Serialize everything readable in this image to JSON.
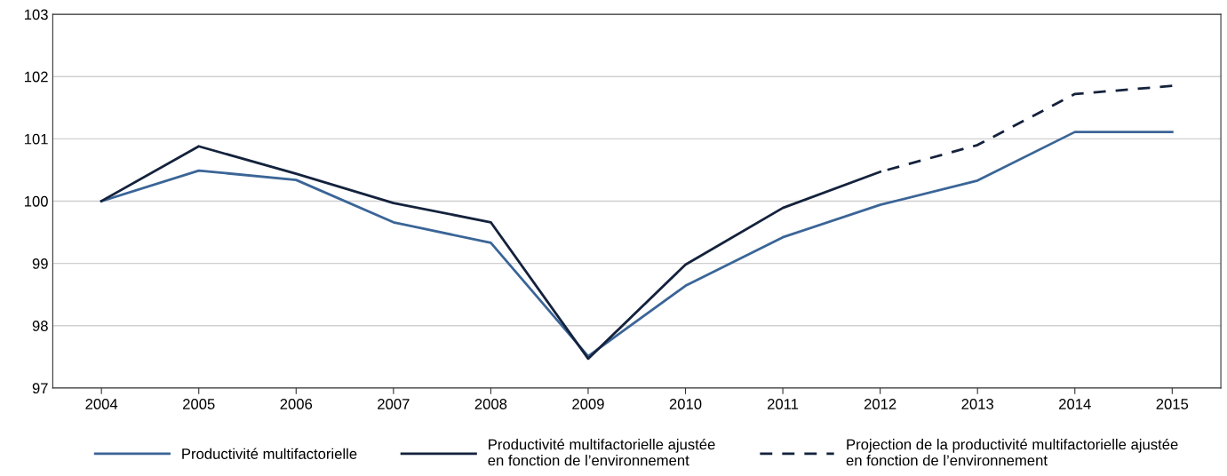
{
  "chart_data": {
    "type": "line",
    "categories": [
      "2004",
      "2005",
      "2006",
      "2007",
      "2008",
      "2009",
      "2010",
      "2011",
      "2012",
      "2013",
      "2014",
      "2015"
    ],
    "series": [
      {
        "name": "Productivité multifactorielle",
        "color": "#3b6597",
        "values": [
          100,
          100.49,
          100.34,
          99.66,
          99.33,
          97.51,
          98.64,
          99.42,
          99.94,
          100.33,
          101.11,
          101.11
        ]
      },
      {
        "name": "Productivité multifactorielle ajustée\nen fonction de l’environnement",
        "color": "#14223c",
        "values": [
          100,
          100.88,
          100.44,
          99.97,
          99.66,
          97.47,
          98.98,
          99.89,
          100.47,
          null,
          null,
          null
        ]
      },
      {
        "name": "Projection de la productivité multifactorielle ajustée\nen fonction de l’environnement",
        "color": "#14223c",
        "line_style": "dashed",
        "values": [
          null,
          null,
          null,
          null,
          null,
          null,
          null,
          null,
          100.47,
          100.9,
          101.72,
          101.85
        ]
      }
    ],
    "ylim": [
      97,
      103
    ],
    "yticks": [
      97,
      98,
      99,
      100,
      101,
      102,
      103
    ],
    "grid": "y",
    "legend": "bottom",
    "marker": "none",
    "line_style": "solid"
  }
}
